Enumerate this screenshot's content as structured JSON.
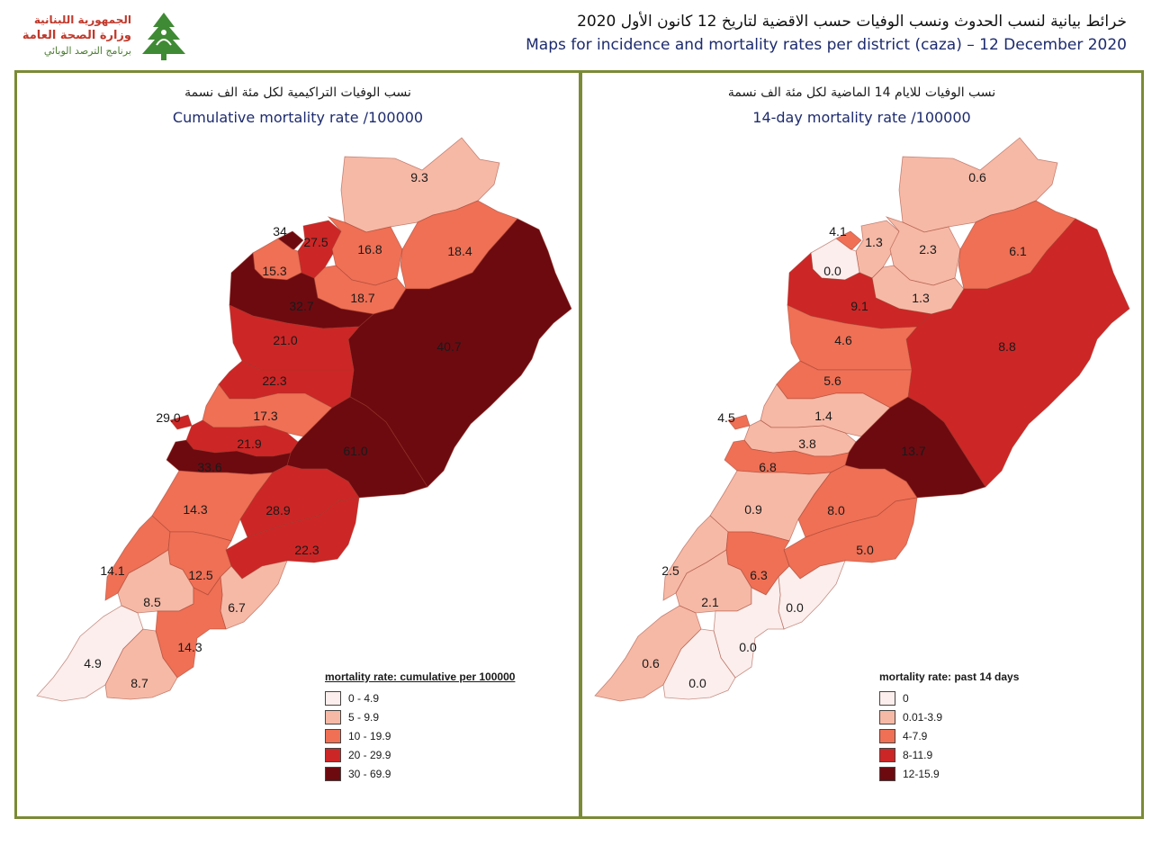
{
  "header": {
    "logo_line1": "الجمهورية اللبنانية",
    "logo_line2": "وزارة الصحة العامة",
    "logo_line3": "برنامج الترصد الوبائي",
    "title_ar": "خرائط بيانية لنسب الحدوث ونسب الوفيات حسب الاقضية لتاريخ 12 كانون الأول 2020",
    "title_en": "Maps for incidence and mortality rates per district (caza) – 12 December 2020"
  },
  "colors": {
    "class0": "#fbeeec",
    "class1": "#f6b9a6",
    "class2": "#ef7055",
    "class3": "#cd2626",
    "class4": "#6d0a10"
  },
  "left_map": {
    "title_ar": "نسب الوفيات التراكيمية لكل مئة الف نسمة",
    "title_en": "Cumulative mortality rate /100000",
    "legend_title": "mortality rate: cumulative per 100000",
    "legend": [
      "0 - 4.9",
      "5 - 9.9",
      "10 - 19.9",
      "20 - 29.9",
      "30 - 69.9"
    ],
    "districts": [
      {
        "label": "9.3",
        "class": 1
      },
      {
        "label": "34",
        "class": 4
      },
      {
        "label": "27.5",
        "class": 3
      },
      {
        "label": "16.8",
        "class": 2
      },
      {
        "label": "18.4",
        "class": 2
      },
      {
        "label": "15.3",
        "class": 2
      },
      {
        "label": "18.7",
        "class": 2
      },
      {
        "label": "32.7",
        "class": 4
      },
      {
        "label": "40.7",
        "class": 4
      },
      {
        "label": "21.0",
        "class": 3
      },
      {
        "label": "22.3",
        "class": 3
      },
      {
        "label": "29.0",
        "class": 3
      },
      {
        "label": "17.3",
        "class": 2
      },
      {
        "label": "21.9",
        "class": 3
      },
      {
        "label": "61.0",
        "class": 4
      },
      {
        "label": "33.6",
        "class": 4
      },
      {
        "label": "14.3",
        "class": 2
      },
      {
        "label": "28.9",
        "class": 3
      },
      {
        "label": "22.3",
        "class": 3
      },
      {
        "label": "14.1",
        "class": 2
      },
      {
        "label": "12.5",
        "class": 2
      },
      {
        "label": "8.5",
        "class": 1
      },
      {
        "label": "6.7",
        "class": 1
      },
      {
        "label": "14.3",
        "class": 2
      },
      {
        "label": "4.9",
        "class": 0
      },
      {
        "label": "8.7",
        "class": 1
      }
    ]
  },
  "right_map": {
    "title_ar": "نسب الوفيات للايام 14 الماضية لكل مئة الف نسمة",
    "title_en": "14-day mortality rate /100000",
    "legend_title": "mortality rate: past 14 days",
    "legend": [
      "0",
      "0.01-3.9",
      "4-7.9",
      "8-11.9",
      "12-15.9"
    ],
    "districts": [
      {
        "label": "0.6",
        "class": 1
      },
      {
        "label": "4.1",
        "class": 2
      },
      {
        "label": "1.3",
        "class": 1
      },
      {
        "label": "2.3",
        "class": 1
      },
      {
        "label": "6.1",
        "class": 2
      },
      {
        "label": "0.0",
        "class": 0
      },
      {
        "label": "1.3",
        "class": 1
      },
      {
        "label": "9.1",
        "class": 3
      },
      {
        "label": "8.8",
        "class": 3
      },
      {
        "label": "4.6",
        "class": 2
      },
      {
        "label": "5.6",
        "class": 2
      },
      {
        "label": "4.5",
        "class": 2
      },
      {
        "label": "1.4",
        "class": 1
      },
      {
        "label": "3.8",
        "class": 1
      },
      {
        "label": "13.7",
        "class": 4
      },
      {
        "label": "6.8",
        "class": 2
      },
      {
        "label": "0.9",
        "class": 1
      },
      {
        "label": "8.0",
        "class": 2
      },
      {
        "label": "5.0",
        "class": 2
      },
      {
        "label": "2.5",
        "class": 1
      },
      {
        "label": "6.3",
        "class": 2
      },
      {
        "label": "2.1",
        "class": 1
      },
      {
        "label": "0.0",
        "class": 0
      },
      {
        "label": "0.0",
        "class": 0
      },
      {
        "label": "0.6",
        "class": 1
      },
      {
        "label": "0.0",
        "class": 0
      }
    ]
  }
}
